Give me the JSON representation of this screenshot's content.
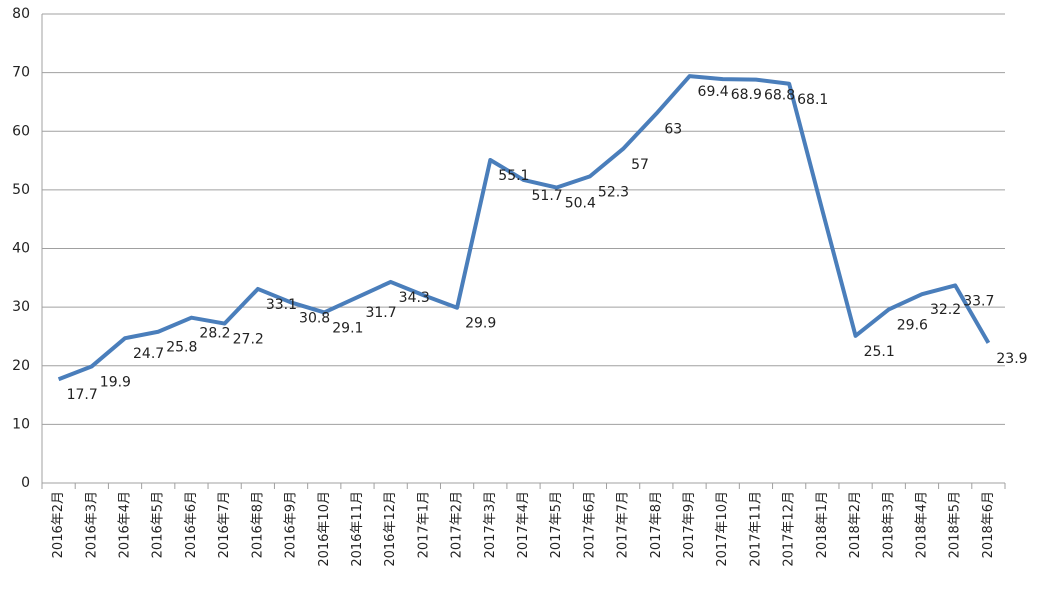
{
  "chart_data": {
    "type": "line",
    "categories": [
      "2016年2月",
      "2016年3月",
      "2016年4月",
      "2016年5月",
      "2016年6月",
      "2016年7月",
      "2016年8月",
      "2016年9月",
      "2016年10月",
      "2016年11月",
      "2016年12月",
      "2017年1月",
      "2017年2月",
      "2017年3月",
      "2017年4月",
      "2017年5月",
      "2017年6月",
      "2017年7月",
      "2017年8月",
      "2017年9月",
      "2017年10月",
      "2017年11月",
      "2017年12月",
      "2018年1月",
      "2018年2月",
      "2018年3月",
      "2018年4月",
      "2018年5月",
      "2018年6月"
    ],
    "series": [
      {
        "name": null,
        "color": "#4a7ebb",
        "values": [
          17.7,
          19.9,
          24.7,
          25.8,
          28.2,
          27.2,
          33.1,
          30.8,
          29.1,
          31.7,
          34.3,
          32.0,
          29.9,
          55.1,
          51.7,
          50.4,
          52.3,
          57,
          63,
          69.4,
          68.9,
          68.8,
          68.1,
          46.5,
          25.1,
          29.6,
          32.2,
          33.7,
          23.9
        ],
        "value_labels": [
          "17.7",
          "19.9",
          "24.7",
          "25.8",
          "28.2",
          "27.2",
          "33.1",
          "30.8",
          "29.1",
          "31.7",
          "34.3",
          null,
          "29.9",
          "55.1",
          "51.7",
          "50.4",
          "52.3",
          "57",
          "63",
          "69.4",
          "68.9",
          "68.8",
          "68.1",
          null,
          "25.1",
          "29.6",
          "32.2",
          "33.7",
          "23.9"
        ]
      }
    ],
    "ylim": [
      0,
      80
    ],
    "yticks": [
      0,
      10,
      20,
      30,
      40,
      50,
      60,
      70,
      80
    ],
    "grid": true
  }
}
